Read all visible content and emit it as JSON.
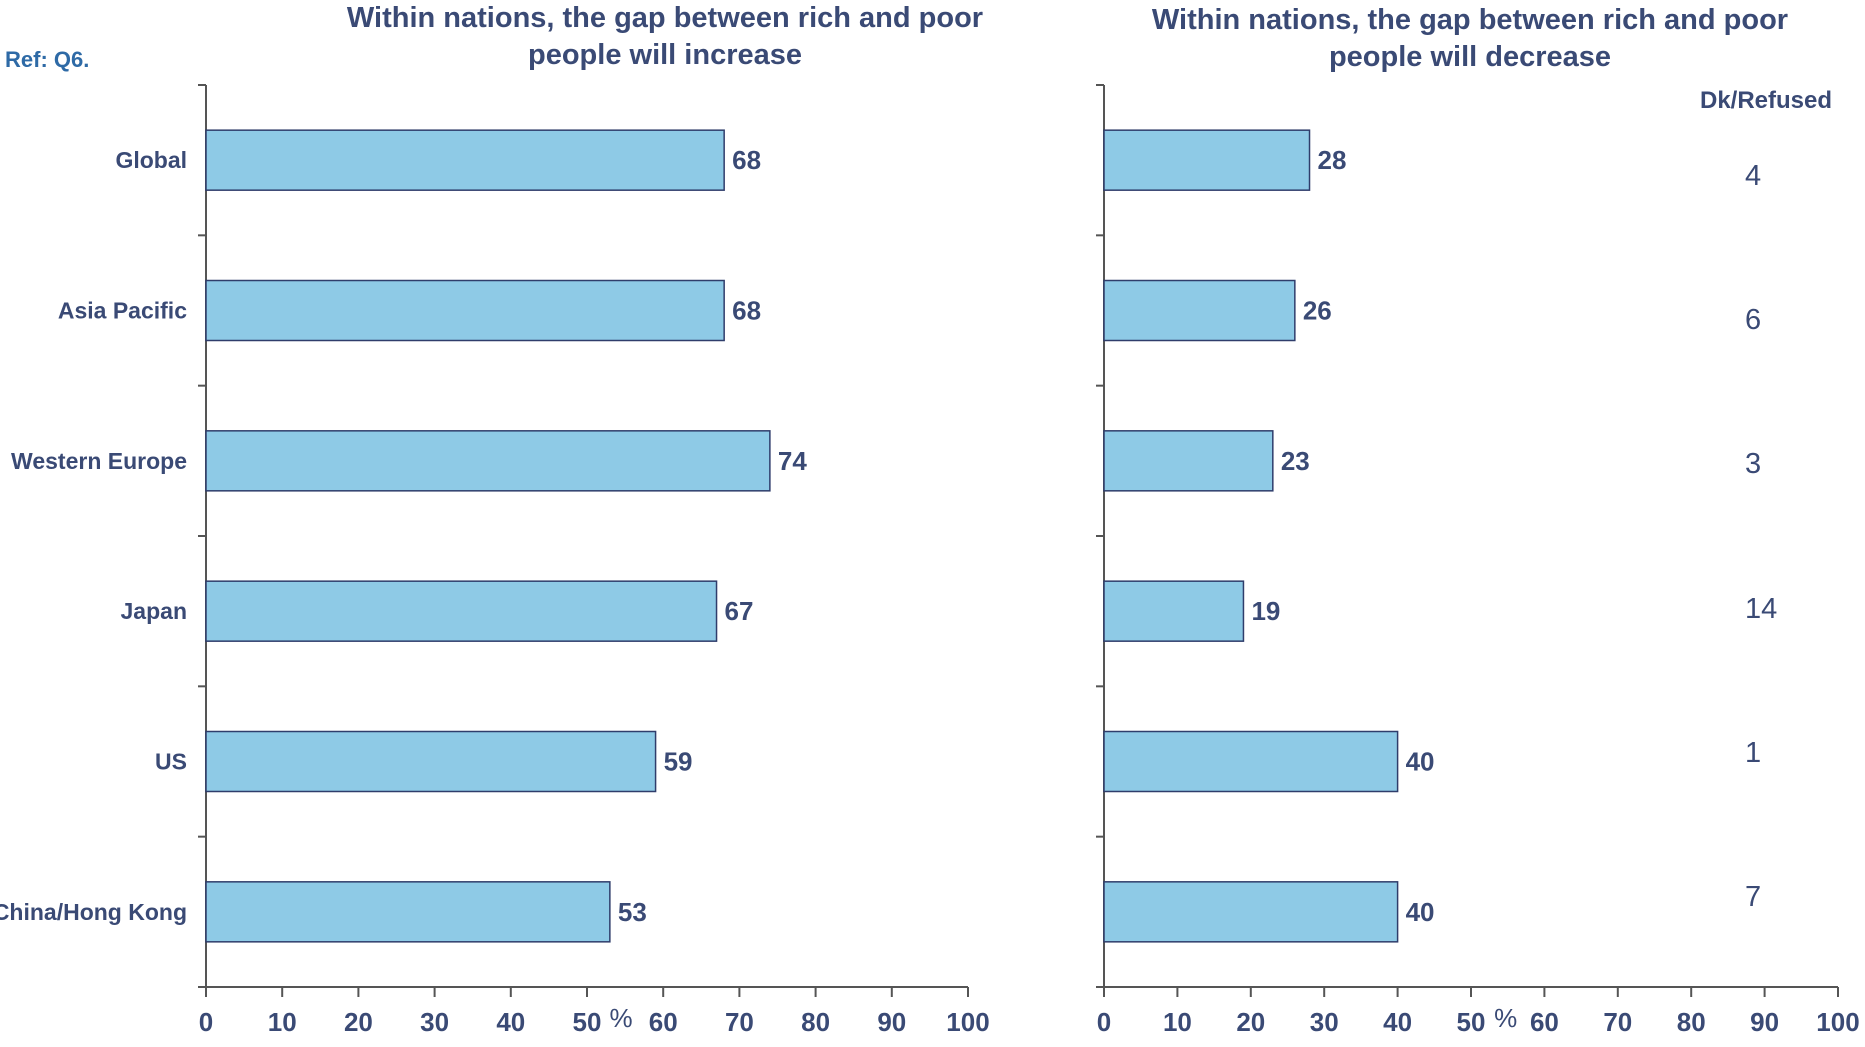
{
  "ref_label": "Ref: Q6.",
  "dk_header": "Dk/Refused",
  "dk_values": [
    "4",
    "6",
    "3",
    "14",
    "1",
    "7"
  ],
  "percent_symbol": "%",
  "colors": {
    "bar_fill": "#8ecae6",
    "bar_stroke": "#2f3d6b",
    "text": "#3a4a75",
    "axis": "#555555"
  },
  "chart_data": [
    {
      "type": "bar",
      "orientation": "horizontal",
      "title": "Within nations, the gap between rich and poor people will increase",
      "categories": [
        "Global",
        "Asia Pacific",
        "Western Europe",
        "Japan",
        "US",
        "China/Hong Kong"
      ],
      "values": [
        68,
        68,
        74,
        67,
        59,
        53
      ],
      "xlim": [
        0,
        100
      ],
      "ticks": [
        "0",
        "10",
        "20",
        "30",
        "40",
        "50",
        "60",
        "70",
        "80",
        "90",
        "100"
      ],
      "grid": false
    },
    {
      "type": "bar",
      "orientation": "horizontal",
      "title": "Within nations, the gap between rich and poor people will decrease",
      "categories": [
        "Global",
        "Asia Pacific",
        "Western Europe",
        "Japan",
        "US",
        "China/Hong Kong"
      ],
      "values": [
        28,
        26,
        23,
        19,
        40,
        40
      ],
      "xlim": [
        0,
        100
      ],
      "ticks": [
        "0",
        "10",
        "20",
        "30",
        "40",
        "50",
        "60",
        "70",
        "80",
        "90",
        "100"
      ],
      "grid": false
    }
  ]
}
